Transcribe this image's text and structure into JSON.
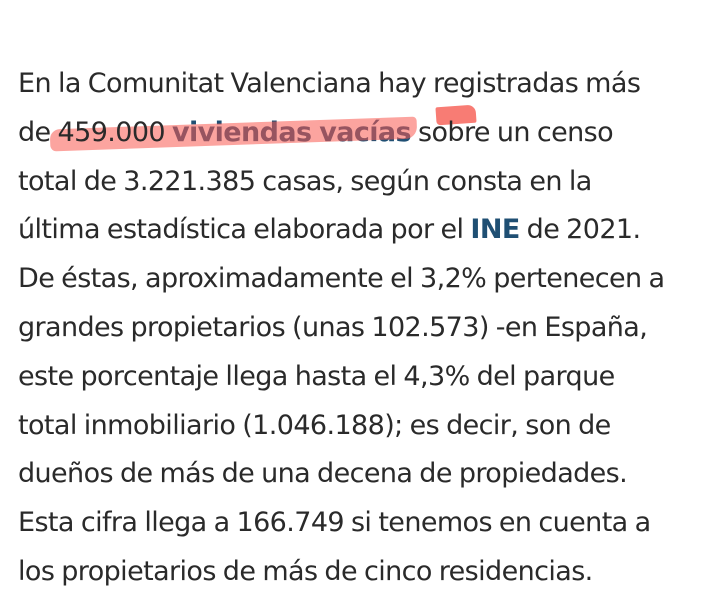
{
  "article": {
    "line1": "En la Comunitat Valenciana hay registradas más",
    "line2_pre": "de ",
    "line2_number": "459.000",
    "line2_link": "viviendas vacías",
    "line2_post": " sobre un censo",
    "line3": "total de 3.221.385 casas, según consta en la",
    "line4_pre": "última estadística elaborada por el ",
    "line4_link": "INE",
    "line4_post": " de 2021.",
    "line5": "De éstas, aproximadamente el 3,2% pertenecen a",
    "line6": "grandes propietarios (unas 102.573) -en España,",
    "line7": "este porcentaje llega hasta el 4,3% del parque",
    "line8": "total inmobiliario (1.046.188); es decir, son de",
    "line9": "dueños de más de una decena de propiedades.",
    "line10": "Esta cifra llega a 166.749 si tenemos en cuenta a",
    "line11": "los propietarios de más de cinco residencias."
  },
  "highlight_color": "#f85a50",
  "link_color": "#1f4f73",
  "text_color": "#2a2a2a"
}
